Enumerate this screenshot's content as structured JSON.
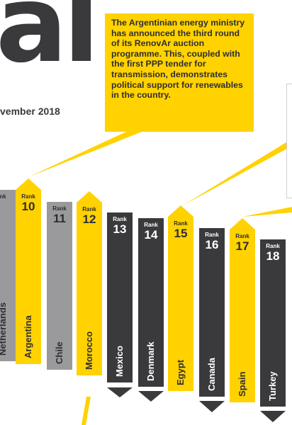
{
  "header": {
    "big_text": "al",
    "date_text": "vember 2018"
  },
  "callout": {
    "text": "The Argentinian energy ministry has announced the third round of its RenovAr auction programme. This, coupled with the first PPP tender for transmission, demonstrates political support for renewables in the country."
  },
  "columns": [
    {
      "rank_label": "nk",
      "rank": "",
      "country": "Netherlands",
      "style": "grey"
    },
    {
      "rank_label": "Rank",
      "rank": "10",
      "country": "Argentina",
      "style": "yellow"
    },
    {
      "rank_label": "Rank",
      "rank": "11",
      "country": "Chile",
      "style": "grey"
    },
    {
      "rank_label": "Rank",
      "rank": "12",
      "country": "Morocco",
      "style": "yellow"
    },
    {
      "rank_label": "Rank",
      "rank": "13",
      "country": "Mexico",
      "style": "dark"
    },
    {
      "rank_label": "Rank",
      "rank": "14",
      "country": "Denmark",
      "style": "dark"
    },
    {
      "rank_label": "Rank",
      "rank": "15",
      "country": "Egypt",
      "style": "yellow"
    },
    {
      "rank_label": "Rank",
      "rank": "16",
      "country": "Canada",
      "style": "dark"
    },
    {
      "rank_label": "Rank",
      "rank": "17",
      "country": "Spain",
      "style": "yellow"
    },
    {
      "rank_label": "Rank",
      "rank": "18",
      "country": "Turkey",
      "style": "dark"
    }
  ],
  "colors": {
    "yellow": "#ffd200",
    "dark": "#3a3a3d",
    "grey": "#9a9a9c"
  }
}
